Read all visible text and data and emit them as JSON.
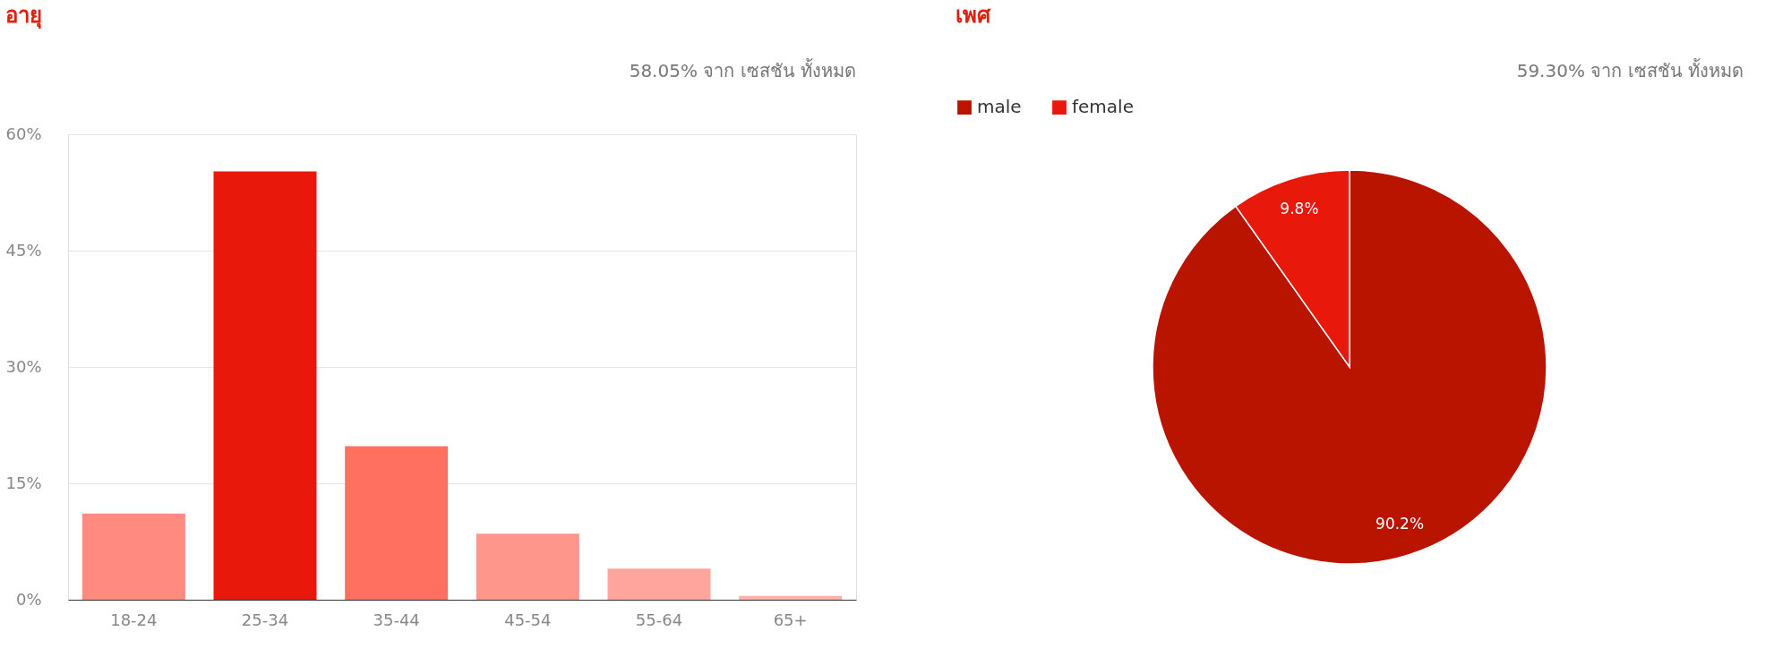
{
  "chart_data": [
    {
      "type": "bar",
      "title": "อายุ",
      "annotations": [
        "58.05% จาก เซสชัน ทั้งหมด"
      ],
      "categories": [
        "18-24",
        "25-34",
        "35-44",
        "45-54",
        "55-64",
        "65+"
      ],
      "values": [
        11.1,
        55.2,
        19.8,
        8.5,
        4.0,
        0.5
      ],
      "colors": [
        "#ff8a80",
        "#e8190a",
        "#ff7060",
        "#ff968c",
        "#ffa59e",
        "#ffb0a8"
      ],
      "ylim": [
        0,
        60
      ],
      "yticks": [
        {
          "value": 0,
          "label": "0%"
        },
        {
          "value": 15,
          "label": "15%"
        },
        {
          "value": 30,
          "label": "30%"
        },
        {
          "value": 45,
          "label": "45%"
        },
        {
          "value": 60,
          "label": "60%"
        }
      ],
      "grid": "y"
    },
    {
      "type": "pie",
      "title": "เพศ",
      "annotations": [
        "59.30% จาก เซสชัน ทั้งหมด"
      ],
      "categories": [
        "male",
        "female"
      ],
      "values": [
        90.2,
        9.8
      ],
      "colors": [
        "#b91400",
        "#e8190a"
      ],
      "value_labels": [
        "90.2%",
        "9.8%"
      ],
      "legend": "top"
    }
  ]
}
